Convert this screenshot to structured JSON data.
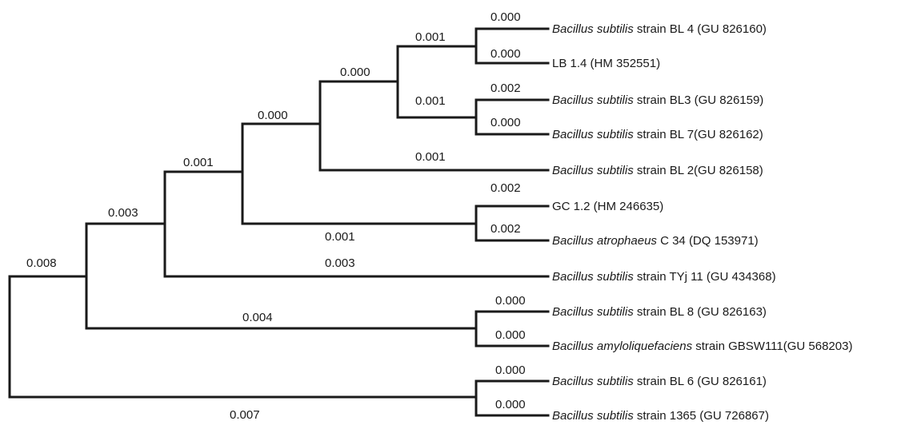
{
  "tree": {
    "branch_length_labels": [
      "0.000",
      "0.001",
      "0.000",
      "0.000",
      "0.002",
      "0.001",
      "0.000",
      "0.000",
      "0.001",
      "0.001",
      "0.002",
      "0.003",
      "0.002",
      "0.001",
      "0.003",
      "0.008",
      "0.000",
      "0.004",
      "0.000",
      "0.000",
      "0.007",
      "0.000"
    ],
    "taxa": [
      {
        "species": "Bacillus subtilis",
        "rest": " strain BL 4 (GU 826160)"
      },
      {
        "species": "",
        "rest": "LB 1.4 (HM 352551)"
      },
      {
        "species": "Bacillus subtilis",
        "rest": " strain BL3 (GU 826159)"
      },
      {
        "species": "Bacillus subtilis",
        "rest": " strain BL 7(GU 826162)"
      },
      {
        "species": "Bacillus subtilis",
        "rest": " strain BL 2(GU 826158)"
      },
      {
        "species": "",
        "rest": "GC 1.2 (HM 246635)"
      },
      {
        "species": "Bacillus atrophaeus",
        "rest": " C 34 (DQ 153971)"
      },
      {
        "species": "Bacillus subtilis",
        "rest": " strain TYj 11 (GU 434368)"
      },
      {
        "species": "Bacillus subtilis",
        "rest": " strain BL 8 (GU 826163)"
      },
      {
        "species": "Bacillus amyloliquefaciens",
        "rest": " strain GBSW111(GU 568203)"
      },
      {
        "species": "Bacillus subtilis",
        "rest": " strain BL 6 (GU 826161)"
      },
      {
        "species": "Bacillus subtilis",
        "rest": " strain 1365 (GU 726867)"
      }
    ]
  }
}
